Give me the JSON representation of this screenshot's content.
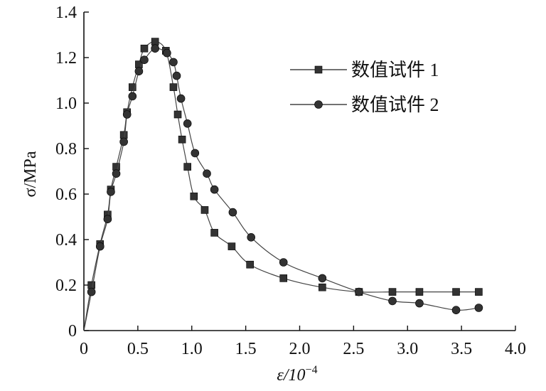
{
  "chart_data": {
    "type": "line",
    "title": "",
    "xlabel": "ε/10",
    "xlabel_exponent": "−4",
    "ylabel": "σ/MPa",
    "xlim": [
      0,
      4.0
    ],
    "ylim": [
      0,
      1.4
    ],
    "x_ticks": [
      "0",
      "0.5",
      "1.0",
      "1.5",
      "2.0",
      "2.5",
      "3.0",
      "3.5",
      "4.0"
    ],
    "y_ticks": [
      "0",
      "0.2",
      "0.4",
      "0.6",
      "0.8",
      "1.0",
      "1.2",
      "1.4"
    ],
    "grid": false,
    "legend_position": "top-right",
    "series": [
      {
        "name": "数值试件 1",
        "marker": "square",
        "color": "#333333",
        "points": [
          [
            0,
            0
          ],
          [
            0.07,
            0.2
          ],
          [
            0.15,
            0.38
          ],
          [
            0.22,
            0.51
          ],
          [
            0.25,
            0.62
          ],
          [
            0.3,
            0.72
          ],
          [
            0.37,
            0.86
          ],
          [
            0.4,
            0.96
          ],
          [
            0.45,
            1.07
          ],
          [
            0.51,
            1.17
          ],
          [
            0.56,
            1.24
          ],
          [
            0.66,
            1.27
          ],
          [
            0.76,
            1.23
          ],
          [
            0.83,
            1.07
          ],
          [
            0.87,
            0.95
          ],
          [
            0.91,
            0.84
          ],
          [
            0.96,
            0.72
          ],
          [
            1.02,
            0.59
          ],
          [
            1.12,
            0.53
          ],
          [
            1.21,
            0.43
          ],
          [
            1.37,
            0.37
          ],
          [
            1.54,
            0.29
          ],
          [
            1.85,
            0.23
          ],
          [
            2.21,
            0.19
          ],
          [
            2.55,
            0.17
          ],
          [
            2.86,
            0.17
          ],
          [
            3.11,
            0.17
          ],
          [
            3.45,
            0.17
          ],
          [
            3.66,
            0.17
          ]
        ]
      },
      {
        "name": "数值试件 2",
        "marker": "circle",
        "color": "#333333",
        "points": [
          [
            0,
            0
          ],
          [
            0.07,
            0.17
          ],
          [
            0.15,
            0.37
          ],
          [
            0.22,
            0.49
          ],
          [
            0.25,
            0.61
          ],
          [
            0.3,
            0.69
          ],
          [
            0.37,
            0.83
          ],
          [
            0.4,
            0.95
          ],
          [
            0.45,
            1.03
          ],
          [
            0.51,
            1.14
          ],
          [
            0.56,
            1.19
          ],
          [
            0.66,
            1.24
          ],
          [
            0.77,
            1.22
          ],
          [
            0.83,
            1.18
          ],
          [
            0.86,
            1.12
          ],
          [
            0.9,
            1.02
          ],
          [
            0.96,
            0.91
          ],
          [
            1.03,
            0.78
          ],
          [
            1.14,
            0.69
          ],
          [
            1.21,
            0.62
          ],
          [
            1.38,
            0.52
          ],
          [
            1.55,
            0.41
          ],
          [
            1.85,
            0.3
          ],
          [
            2.21,
            0.23
          ],
          [
            2.55,
            0.17
          ],
          [
            2.86,
            0.13
          ],
          [
            3.11,
            0.12
          ],
          [
            3.45,
            0.09
          ],
          [
            3.66,
            0.1
          ]
        ]
      }
    ]
  }
}
